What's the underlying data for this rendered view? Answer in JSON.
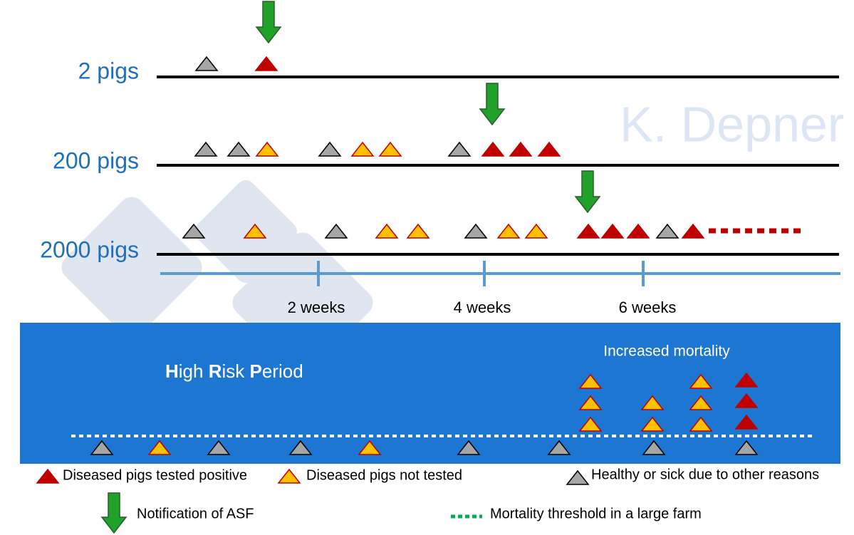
{
  "rows": [
    {
      "label": "2 pigs"
    },
    {
      "label": "200 pigs"
    },
    {
      "label": "2000 pigs"
    }
  ],
  "watermark": "K. Depner",
  "timeline": [
    "2 weeks",
    "4 weeks",
    "6 weeks"
  ],
  "box": {
    "title": "High Risk Period",
    "subtitle": "Increased mortality"
  },
  "legend": {
    "positive": "Diseased pigs tested positive",
    "not_tested": "Diseased pigs not tested",
    "healthy": "Healthy or sick due to other reasons",
    "notification": "Notification of ASF",
    "threshold": "Mortality threshold in a large farm"
  }
}
